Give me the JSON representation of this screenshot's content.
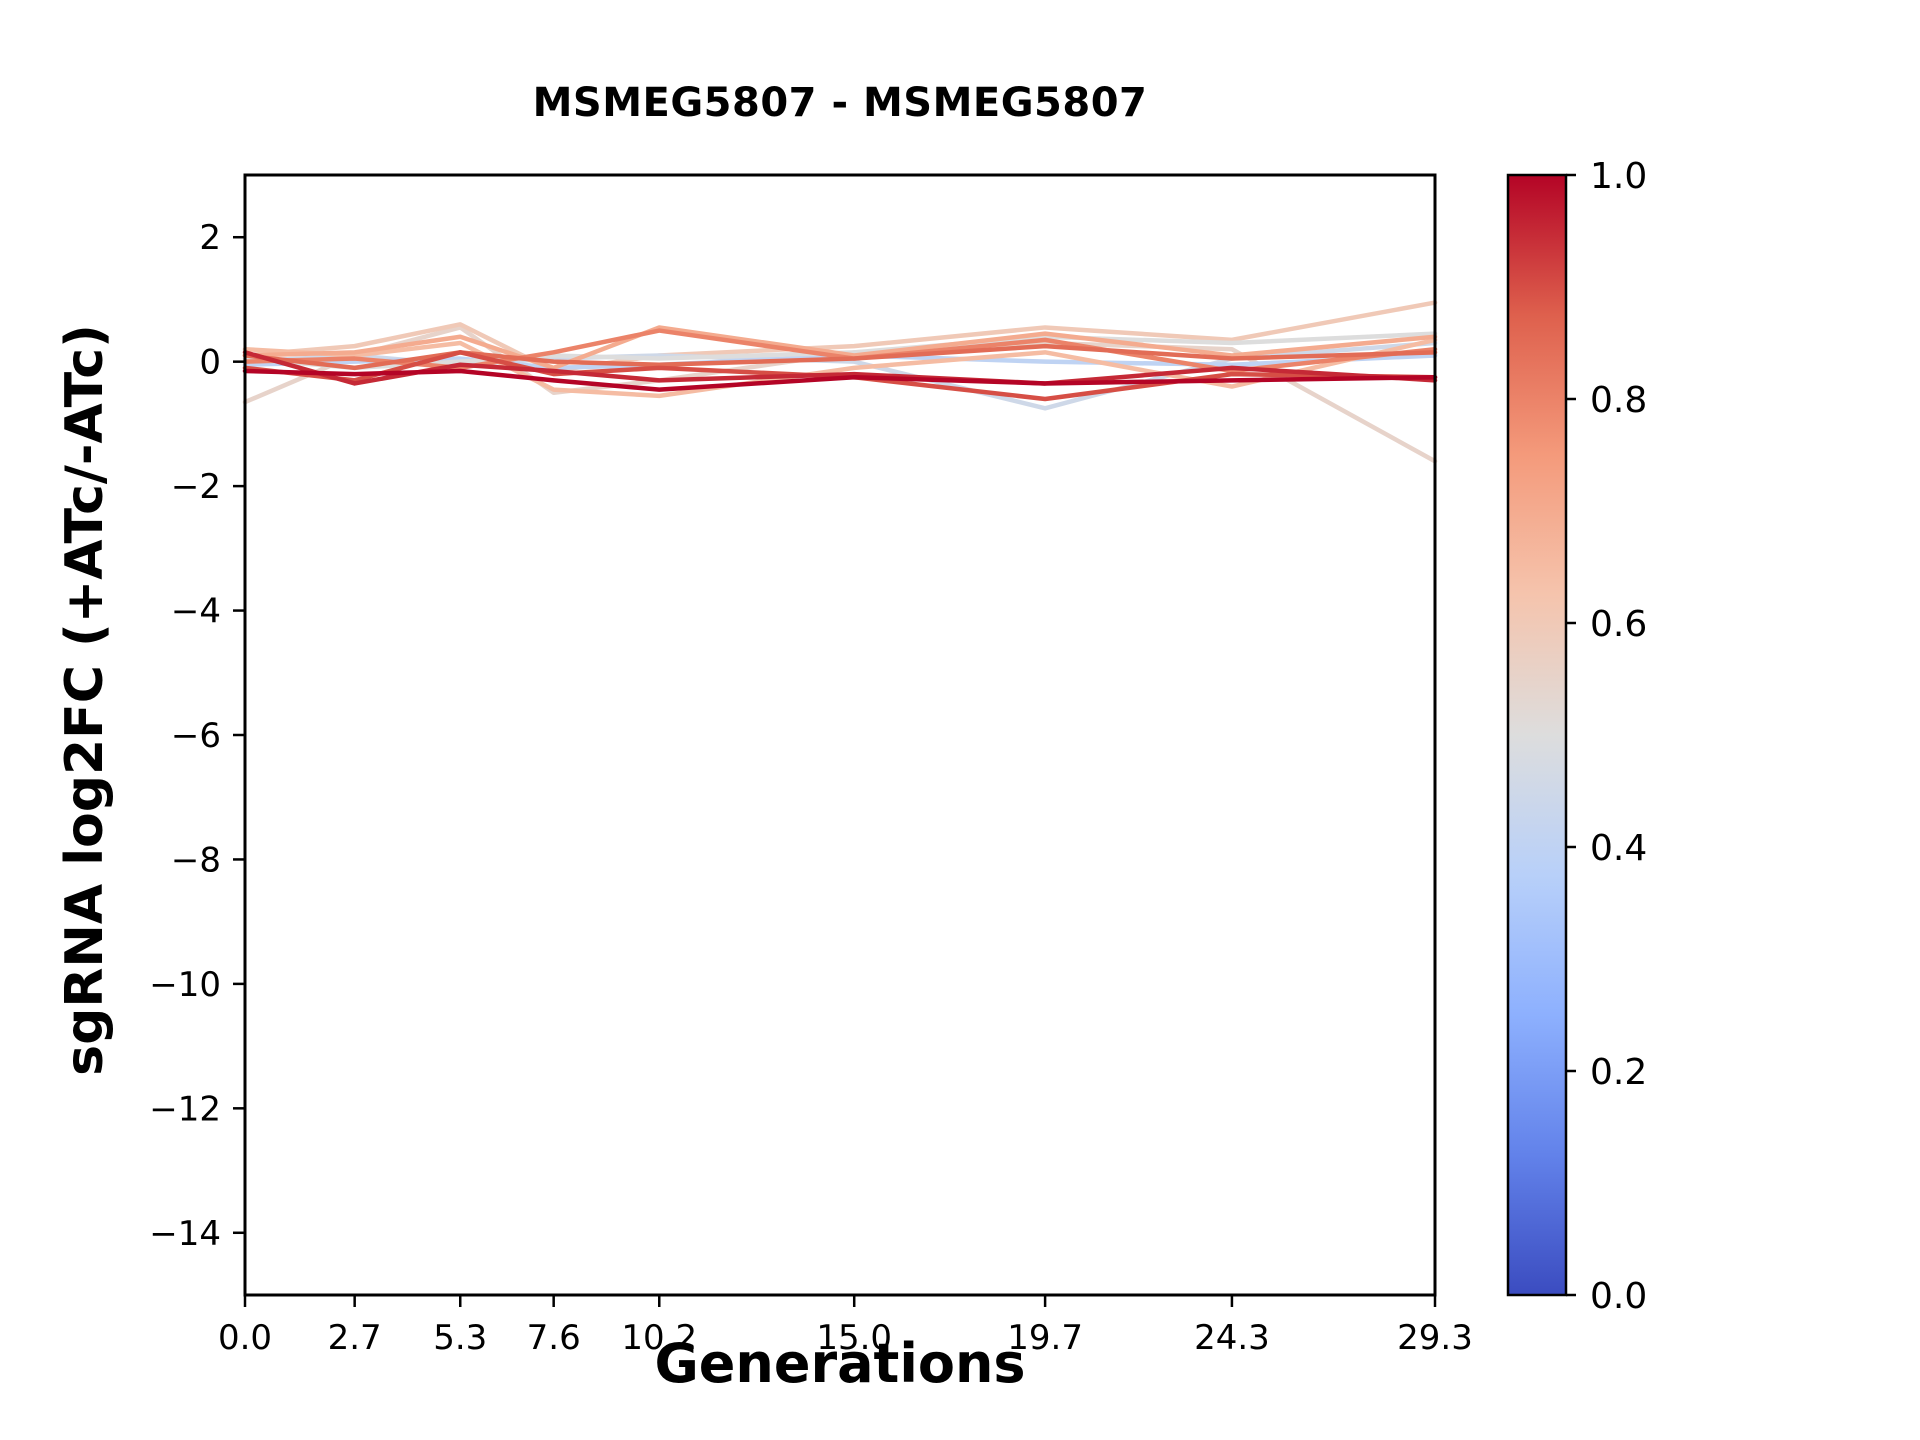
{
  "figure": {
    "background": "#ffffff"
  },
  "chart_data": {
    "type": "line",
    "title": "MSMEG5807 - MSMEG5807",
    "xlabel": "Generations",
    "ylabel": "sgRNA log2FC (+ATc/-ATc)",
    "x": [
      0.0,
      2.7,
      5.3,
      7.6,
      10.2,
      15.0,
      19.7,
      24.3,
      29.3
    ],
    "xtick_labels": [
      "0.0",
      "2.7",
      "5.3",
      "7.6",
      "10.2",
      "15.0",
      "19.7",
      "24.3",
      "29.3"
    ],
    "yticks": [
      2,
      0,
      -2,
      -4,
      -6,
      -8,
      -10,
      -12,
      -14
    ],
    "ytick_labels": [
      "2",
      "0",
      "−2",
      "−4",
      "−6",
      "−8",
      "−10",
      "−12",
      "−14"
    ],
    "xlim": [
      0,
      29.3
    ],
    "ylim": [
      -15,
      3
    ],
    "grid": false,
    "legend": "none",
    "series": [
      {
        "cmap_value": 0.55,
        "color": "#e7d3ca",
        "values": [
          -0.65,
          0.1,
          0.55,
          -0.5,
          -0.3,
          0.15,
          0.3,
          0.2,
          -1.6
        ]
      },
      {
        "cmap_value": 0.6,
        "color": "#f0c9b7",
        "values": [
          0.1,
          0.25,
          0.6,
          -0.15,
          0.1,
          0.25,
          0.55,
          0.35,
          0.95
        ]
      },
      {
        "cmap_value": 0.45,
        "color": "#ced8e8",
        "values": [
          0.0,
          0.1,
          -0.05,
          0.05,
          0.1,
          0.0,
          -0.75,
          0.05,
          0.3
        ]
      },
      {
        "cmap_value": 0.4,
        "color": "#bfd3f3",
        "values": [
          -0.05,
          0.0,
          0.05,
          -0.1,
          -0.05,
          0.1,
          0.0,
          -0.05,
          0.1
        ]
      },
      {
        "cmap_value": 0.5,
        "color": "#dddddd",
        "values": [
          0.05,
          -0.1,
          0.0,
          0.1,
          0.05,
          0.15,
          0.4,
          0.3,
          0.45
        ]
      },
      {
        "cmap_value": 0.65,
        "color": "#f5bca3",
        "values": [
          0.2,
          0.1,
          0.3,
          -0.45,
          -0.55,
          -0.1,
          0.15,
          -0.4,
          0.35
        ]
      },
      {
        "cmap_value": 0.7,
        "color": "#f4ab8f",
        "values": [
          0.1,
          0.15,
          0.4,
          -0.1,
          0.55,
          0.1,
          0.45,
          0.1,
          0.4
        ]
      },
      {
        "cmap_value": 0.8,
        "color": "#eb8369",
        "values": [
          0.0,
          0.05,
          -0.1,
          0.15,
          0.5,
          0.05,
          0.35,
          -0.15,
          0.2
        ]
      },
      {
        "cmap_value": 0.85,
        "color": "#e26c56",
        "values": [
          0.1,
          -0.1,
          0.15,
          0.0,
          -0.05,
          0.05,
          0.25,
          0.05,
          0.15
        ]
      },
      {
        "cmap_value": 0.9,
        "color": "#d64e45",
        "values": [
          -0.1,
          -0.3,
          0.15,
          -0.2,
          -0.1,
          -0.25,
          -0.6,
          -0.2,
          -0.25
        ]
      },
      {
        "cmap_value": 0.95,
        "color": "#c52936",
        "values": [
          0.15,
          -0.35,
          -0.05,
          -0.15,
          -0.3,
          -0.2,
          -0.35,
          -0.1,
          -0.3
        ]
      },
      {
        "cmap_value": 1.0,
        "color": "#b40426",
        "values": [
          -0.15,
          -0.2,
          -0.15,
          -0.3,
          -0.45,
          -0.25,
          -0.35,
          -0.3,
          -0.25
        ]
      }
    ],
    "colorbar": {
      "min": 0.0,
      "max": 1.0,
      "ticks": [
        {
          "value": 1.0,
          "label": "1.0"
        },
        {
          "value": 0.8,
          "label": "0.8"
        },
        {
          "value": 0.6,
          "label": "0.6"
        },
        {
          "value": 0.4,
          "label": "0.4"
        },
        {
          "value": 0.2,
          "label": "0.2"
        },
        {
          "value": 0.0,
          "label": "0.0"
        }
      ],
      "stops": [
        {
          "offset": 0.0,
          "color": "#3b4cc0"
        },
        {
          "offset": 0.125,
          "color": "#6282ea"
        },
        {
          "offset": 0.25,
          "color": "#8db0fe"
        },
        {
          "offset": 0.375,
          "color": "#b8d0f9"
        },
        {
          "offset": 0.5,
          "color": "#dddddd"
        },
        {
          "offset": 0.625,
          "color": "#f5c4ad"
        },
        {
          "offset": 0.75,
          "color": "#f49a7b"
        },
        {
          "offset": 0.875,
          "color": "#de604d"
        },
        {
          "offset": 1.0,
          "color": "#b40426"
        }
      ]
    }
  }
}
